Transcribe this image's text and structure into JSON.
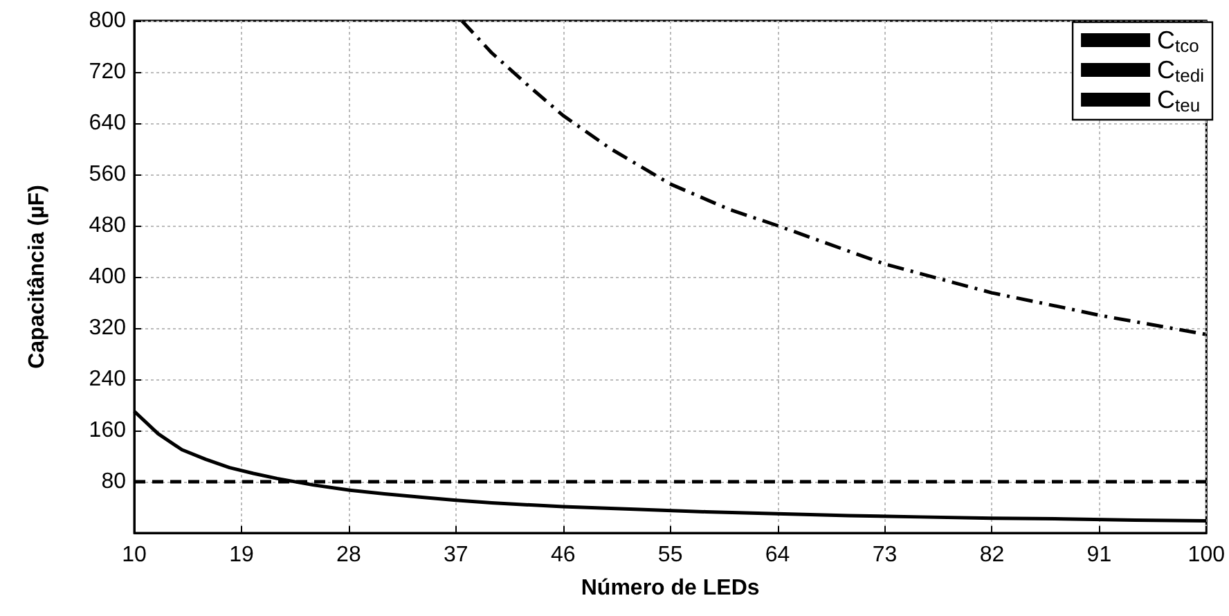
{
  "chart_data": {
    "type": "line",
    "xlabel": "Número de LEDs",
    "ylabel": "Capacitância (µF)",
    "xlim": [
      10,
      100
    ],
    "xticks": [
      10,
      19,
      28,
      37,
      46,
      55,
      64,
      73,
      82,
      91,
      100
    ],
    "ylim": [
      0,
      800
    ],
    "yticks": [
      80,
      160,
      240,
      320,
      400,
      480,
      560,
      640,
      720,
      800
    ],
    "grid": true,
    "legend": "top right",
    "marker": "none",
    "series": [
      {
        "name": "C$_{tco}$",
        "color": "#000000",
        "line_style": "solid",
        "x": [
          10,
          12,
          14,
          16,
          18,
          20,
          22,
          25,
          28,
          31,
          34,
          37,
          40,
          46,
          52,
          58,
          64,
          70,
          76,
          82,
          88,
          94,
          100
        ],
        "values": [
          190,
          155,
          130,
          115,
          102,
          93,
          85,
          75,
          67,
          61,
          56,
          51,
          47,
          41,
          37,
          33,
          30,
          27,
          25,
          23,
          22,
          20,
          19
        ]
      },
      {
        "name": "C$_{tedi}$",
        "color": "#000000",
        "line_style": "dashed",
        "x": [
          10,
          100
        ],
        "values": [
          80,
          80
        ]
      },
      {
        "name": "C$_{teu}$",
        "color": "#000000",
        "line_style": "dashdot",
        "x": [
          37.5,
          40,
          43,
          46,
          50,
          55,
          60,
          64,
          70,
          73,
          76,
          82,
          88,
          91,
          94,
          100
        ],
        "values": [
          800,
          750,
          700,
          652,
          600,
          545,
          505,
          480,
          440,
          420,
          405,
          375,
          352,
          340,
          330,
          310
        ]
      }
    ]
  }
}
